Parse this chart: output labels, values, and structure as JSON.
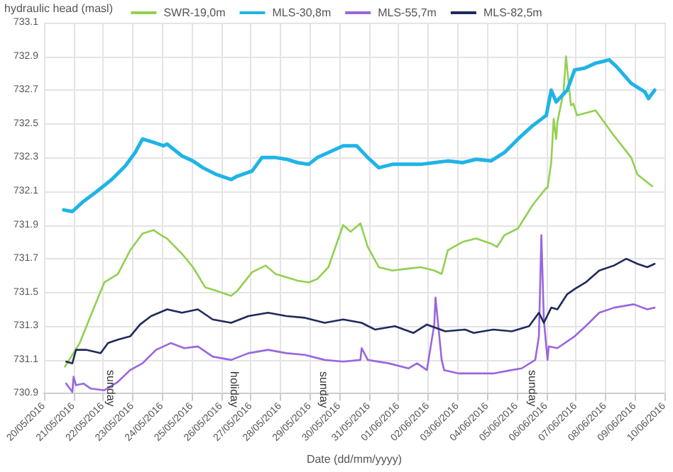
{
  "chart_data": {
    "type": "line",
    "xlabel": "Date (dd/mm/yyyy)",
    "ylabel": "hydraulic head (masl)",
    "xlim": [
      "2016-05-20",
      "2016-06-10"
    ],
    "xticks": [
      {
        "value": "2016-05-20",
        "label": "20/05/2016"
      },
      {
        "value": "2016-05-21",
        "label": "21/05/2016"
      },
      {
        "value": "2016-05-22",
        "label": "22/05/2016"
      },
      {
        "value": "2016-05-23",
        "label": "23/05/2016"
      },
      {
        "value": "2016-05-24",
        "label": "24/05/2016"
      },
      {
        "value": "2016-05-25",
        "label": "25/05/2016"
      },
      {
        "value": "2016-05-26",
        "label": "26/05/2016"
      },
      {
        "value": "2016-05-27",
        "label": "27/05/2016"
      },
      {
        "value": "2016-05-28",
        "label": "28/05/2016"
      },
      {
        "value": "2016-05-29",
        "label": "29/05/2016"
      },
      {
        "value": "2016-05-30",
        "label": "30/05/2016"
      },
      {
        "value": "2016-05-31",
        "label": "31/05/2016"
      },
      {
        "value": "2016-06-01",
        "label": "01/06/2016"
      },
      {
        "value": "2016-06-02",
        "label": "02/06/2016"
      },
      {
        "value": "2016-06-03",
        "label": "03/06/2016"
      },
      {
        "value": "2016-06-04",
        "label": "04/06/2016"
      },
      {
        "value": "2016-06-05",
        "label": "05/06/2016"
      },
      {
        "value": "2016-06-06",
        "label": "06/06/2016"
      },
      {
        "value": "2016-06-07",
        "label": "07/06/2016"
      },
      {
        "value": "2016-06-08",
        "label": "08/06/2016"
      },
      {
        "value": "2016-06-09",
        "label": "09/06/2016"
      },
      {
        "value": "2016-06-10",
        "label": "10/06/2016"
      }
    ],
    "ylim": [
      730.9,
      733.1
    ],
    "yticks": [
      730.9,
      731.1,
      731.3,
      731.5,
      731.7,
      731.9,
      732.1,
      732.3,
      732.5,
      732.7,
      732.9,
      733.1
    ],
    "grid": true,
    "legend": "top",
    "marker": "none",
    "line_style": "solid",
    "annotations": [
      "sunday",
      "holiday",
      "sunday",
      "sunday"
    ],
    "series": [
      {
        "name": "SWR-19,0m",
        "color": "#92d050",
        "x": [
          "2016-05-20T17:00",
          "2016-05-21T05:00",
          "2016-05-21T16:00",
          "2016-05-22T01:00",
          "2016-05-22T12:00",
          "2016-05-22T22:00",
          "2016-05-23T08:00",
          "2016-05-23T17:00",
          "2016-05-23T23:00",
          "2016-05-24T04:00",
          "2016-05-24T16:00",
          "2016-05-25T01:00",
          "2016-05-25T11:00",
          "2016-05-25T20:00",
          "2016-05-26T08:00",
          "2016-05-26T13:00",
          "2016-05-27T01:00",
          "2016-05-27T12:00",
          "2016-05-27T20:00",
          "2016-05-28T05:00",
          "2016-05-28T14:00",
          "2016-05-28T23:00",
          "2016-05-29T06:00",
          "2016-05-29T15:00",
          "2016-05-30T03:00",
          "2016-05-30T09:00",
          "2016-05-30T17:00",
          "2016-05-30T23:00",
          "2016-05-31T08:00",
          "2016-05-31T19:00",
          "2016-06-01T06:00",
          "2016-06-01T18:00",
          "2016-06-02T05:00",
          "2016-06-02T11:00",
          "2016-06-02T16:00",
          "2016-06-03T04:00",
          "2016-06-03T15:00",
          "2016-06-04T03:00",
          "2016-06-04T08:00",
          "2016-06-04T14:00",
          "2016-06-05T01:00",
          "2016-06-05T13:00",
          "2016-06-06T00:00",
          "2016-06-06T01:00",
          "2016-06-06T04:00",
          "2016-06-06T06:00",
          "2016-06-06T08:00",
          "2016-06-06T09:00",
          "2016-06-06T14:00",
          "2016-06-06T16:00",
          "2016-06-06T20:00",
          "2016-06-06T22:00",
          "2016-06-07T01:00",
          "2016-06-07T16:00",
          "2016-06-08T07:00",
          "2016-06-08T21:00",
          "2016-06-09T02:00",
          "2016-06-09T14:00"
        ],
        "values": [
          731.06,
          731.2,
          731.4,
          731.56,
          731.61,
          731.75,
          731.85,
          731.87,
          731.84,
          731.82,
          731.73,
          731.65,
          731.53,
          731.51,
          731.48,
          731.51,
          731.62,
          731.66,
          731.61,
          731.59,
          731.57,
          731.56,
          731.58,
          731.65,
          731.9,
          731.86,
          731.91,
          731.77,
          731.65,
          731.63,
          731.64,
          731.65,
          731.63,
          731.61,
          731.75,
          731.8,
          731.82,
          731.79,
          731.77,
          731.84,
          731.88,
          732.02,
          732.12,
          732.12,
          732.27,
          732.53,
          732.41,
          732.51,
          732.69,
          732.9,
          732.61,
          732.62,
          732.55,
          732.58,
          732.43,
          732.3,
          732.2,
          732.13
        ]
      },
      {
        "name": "MLS-30,8m",
        "color": "#1fb4e6",
        "x": [
          "2016-05-20T16:00",
          "2016-05-20T23:00",
          "2016-05-21T08:00",
          "2016-05-21T19:00",
          "2016-05-22T07:00",
          "2016-05-22T18:00",
          "2016-05-23T02:00",
          "2016-05-23T08:00",
          "2016-05-23T17:00",
          "2016-05-24T01:00",
          "2016-05-24T04:00",
          "2016-05-24T16:00",
          "2016-05-25T01:00",
          "2016-05-25T09:00",
          "2016-05-25T20:00",
          "2016-05-26T08:00",
          "2016-05-26T13:00",
          "2016-05-27T01:00",
          "2016-05-27T09:00",
          "2016-05-27T20:00",
          "2016-05-28T05:00",
          "2016-05-28T14:00",
          "2016-05-28T23:00",
          "2016-05-29T06:00",
          "2016-05-29T15:00",
          "2016-05-30T03:00",
          "2016-05-30T14:00",
          "2016-05-30T23:00",
          "2016-05-31T08:00",
          "2016-05-31T19:00",
          "2016-06-01T06:00",
          "2016-06-01T18:00",
          "2016-06-02T05:00",
          "2016-06-02T16:00",
          "2016-06-03T04:00",
          "2016-06-03T15:00",
          "2016-06-04T03:00",
          "2016-06-04T14:00",
          "2016-06-05T01:00",
          "2016-06-05T13:00",
          "2016-06-06T00:00",
          "2016-06-06T04:00",
          "2016-06-06T08:00",
          "2016-06-06T17:00",
          "2016-06-06T23:00",
          "2016-06-07T07:00",
          "2016-06-07T16:00",
          "2016-06-07T22:00",
          "2016-06-08T03:00",
          "2016-06-08T09:00",
          "2016-06-08T21:00",
          "2016-06-09T08:00",
          "2016-06-09T11:00",
          "2016-06-09T16:00"
        ],
        "values": [
          731.99,
          731.98,
          732.04,
          732.1,
          732.17,
          732.25,
          732.33,
          732.41,
          732.39,
          732.37,
          732.38,
          732.31,
          732.28,
          732.24,
          732.2,
          732.17,
          732.19,
          732.22,
          732.3,
          732.3,
          732.29,
          732.27,
          732.26,
          732.3,
          732.33,
          732.37,
          732.37,
          732.3,
          732.24,
          732.26,
          732.26,
          732.26,
          732.27,
          732.28,
          732.27,
          732.29,
          732.28,
          732.33,
          732.41,
          732.49,
          732.55,
          732.7,
          732.63,
          732.7,
          732.82,
          732.83,
          732.86,
          732.87,
          732.88,
          732.84,
          732.74,
          732.69,
          732.65,
          732.7
        ]
      },
      {
        "name": "MLS-55,7m",
        "color": "#9966dd",
        "x": [
          "2016-05-20T18:00",
          "2016-05-20T23:00",
          "2016-05-21T00:00",
          "2016-05-21T02:00",
          "2016-05-21T08:00",
          "2016-05-21T14:00",
          "2016-05-22T01:00",
          "2016-05-22T12:00",
          "2016-05-22T22:00",
          "2016-05-23T08:00",
          "2016-05-23T19:00",
          "2016-05-24T07:00",
          "2016-05-24T18:00",
          "2016-05-25T05:00",
          "2016-05-25T17:00",
          "2016-05-26T08:00",
          "2016-05-26T22:00",
          "2016-05-27T14:00",
          "2016-05-28T05:00",
          "2016-05-28T20:00",
          "2016-05-29T12:00",
          "2016-05-30T03:00",
          "2016-05-30T17:00",
          "2016-05-30T18:00",
          "2016-05-30T23:00",
          "2016-05-31T16:00",
          "2016-06-01T08:00",
          "2016-06-01T15:00",
          "2016-06-01T23:00",
          "2016-06-02T05:00",
          "2016-06-02T06:00",
          "2016-06-02T11:00",
          "2016-06-02T13:00",
          "2016-06-03T01:00",
          "2016-06-03T13:00",
          "2016-06-04T05:00",
          "2016-06-04T20:00",
          "2016-06-05T04:00",
          "2016-06-05T15:00",
          "2016-06-05T18:00",
          "2016-06-05T20:00",
          "2016-06-05T22:00",
          "2016-06-06T01:00",
          "2016-06-06T02:00",
          "2016-06-06T09:00",
          "2016-06-06T23:00",
          "2016-06-07T08:00",
          "2016-06-07T19:00",
          "2016-06-08T07:00",
          "2016-06-08T23:00",
          "2016-06-09T10:00",
          "2016-06-09T16:00"
        ],
        "values": [
          730.96,
          730.91,
          731.0,
          730.95,
          730.96,
          730.93,
          730.92,
          730.97,
          731.04,
          731.08,
          731.16,
          731.2,
          731.17,
          731.18,
          731.12,
          731.1,
          731.14,
          731.16,
          731.14,
          731.13,
          731.1,
          731.09,
          731.1,
          731.17,
          731.1,
          731.08,
          731.05,
          731.08,
          731.04,
          731.31,
          731.47,
          731.1,
          731.04,
          731.02,
          731.02,
          731.02,
          731.04,
          731.05,
          731.1,
          731.24,
          731.84,
          731.34,
          731.1,
          731.18,
          731.17,
          731.24,
          731.3,
          731.38,
          731.41,
          731.43,
          731.4,
          731.41
        ]
      },
      {
        "name": "MLS-82,5m",
        "color": "#1f2a5c",
        "x": [
          "2016-05-20T18:00",
          "2016-05-20T23:00",
          "2016-05-21T02:00",
          "2016-05-21T10:00",
          "2016-05-21T22:00",
          "2016-05-22T04:00",
          "2016-05-22T12:00",
          "2016-05-22T22:00",
          "2016-05-23T06:00",
          "2016-05-23T15:00",
          "2016-05-24T04:00",
          "2016-05-24T16:00",
          "2016-05-25T05:00",
          "2016-05-25T17:00",
          "2016-05-26T08:00",
          "2016-05-26T22:00",
          "2016-05-27T14:00",
          "2016-05-28T05:00",
          "2016-05-28T20:00",
          "2016-05-29T12:00",
          "2016-05-30T03:00",
          "2016-05-30T18:00",
          "2016-05-31T05:00",
          "2016-05-31T21:00",
          "2016-06-01T12:00",
          "2016-06-01T23:00",
          "2016-06-02T14:00",
          "2016-06-03T06:00",
          "2016-06-03T13:00",
          "2016-06-04T05:00",
          "2016-06-04T20:00",
          "2016-06-05T10:00",
          "2016-06-05T18:00",
          "2016-06-05T22:00",
          "2016-06-06T04:00",
          "2016-06-06T09:00",
          "2016-06-06T17:00",
          "2016-06-06T23:00",
          "2016-06-07T08:00",
          "2016-06-07T19:00",
          "2016-06-08T07:00",
          "2016-06-08T17:00",
          "2016-06-09T02:00",
          "2016-06-09T10:00",
          "2016-06-09T16:00"
        ],
        "values": [
          731.09,
          731.08,
          731.16,
          731.16,
          731.14,
          731.2,
          731.22,
          731.24,
          731.31,
          731.36,
          731.4,
          731.38,
          731.4,
          731.34,
          731.32,
          731.36,
          731.38,
          731.36,
          731.35,
          731.32,
          731.34,
          731.32,
          731.28,
          731.3,
          731.26,
          731.31,
          731.27,
          731.28,
          731.26,
          731.28,
          731.27,
          731.3,
          731.38,
          731.32,
          731.41,
          731.4,
          731.49,
          731.52,
          731.56,
          731.63,
          731.66,
          731.7,
          731.67,
          731.65,
          731.67
        ]
      }
    ]
  }
}
